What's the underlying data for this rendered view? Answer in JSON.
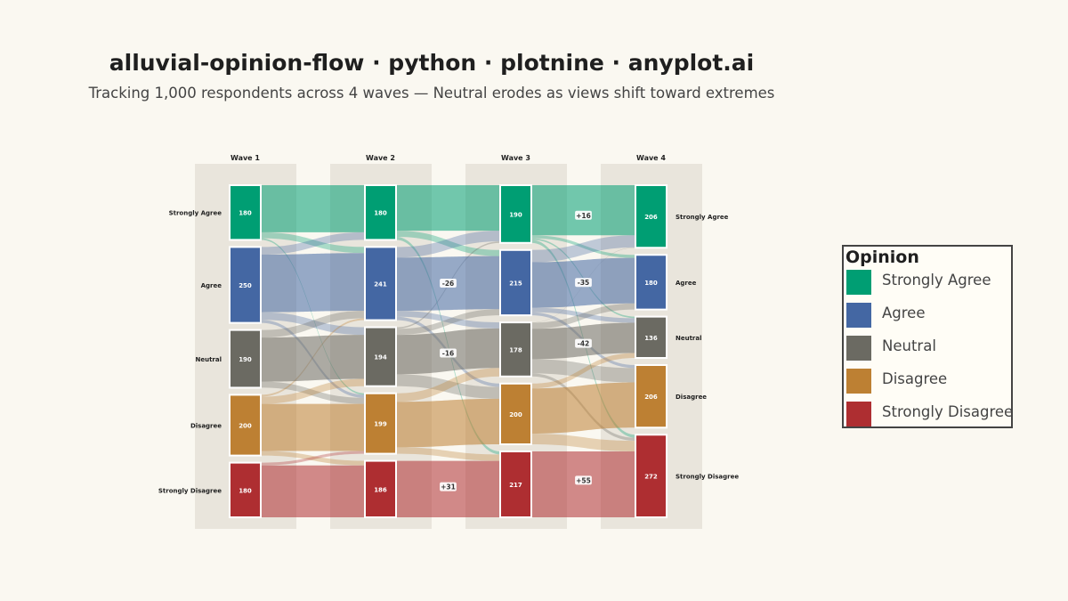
{
  "title": "alluvial-opinion-flow · python · plotnine · anyplot.ai",
  "subtitle": "Tracking 1,000 respondents across 4 waves — Neutral erodes as views shift toward extremes",
  "colors": {
    "Strongly Agree": "#009E73",
    "Agree": "#4467A3",
    "Neutral": "#6B6A62",
    "Disagree": "#BD8033",
    "Strongly Disagree": "#AE2E31"
  },
  "legend": {
    "title": "Opinion",
    "items": [
      "Strongly Agree",
      "Agree",
      "Neutral",
      "Disagree",
      "Strongly Disagree"
    ]
  },
  "chart_data": {
    "type": "alluvial",
    "waves": [
      "Wave 1",
      "Wave 2",
      "Wave 3",
      "Wave 4"
    ],
    "categories": [
      "Strongly Agree",
      "Agree",
      "Neutral",
      "Disagree",
      "Strongly Disagree"
    ],
    "counts": [
      [
        180,
        250,
        190,
        200,
        180
      ],
      [
        180,
        241,
        194,
        199,
        186
      ],
      [
        190,
        215,
        178,
        200,
        217
      ],
      [
        206,
        180,
        136,
        206,
        272
      ]
    ],
    "flows": [
      [
        [
          155,
          20,
          0,
          5,
          0
        ],
        [
          25,
          190,
          25,
          10,
          0
        ],
        [
          0,
          25,
          145,
          20,
          0
        ],
        [
          0,
          6,
          24,
          155,
          15
        ],
        [
          0,
          0,
          0,
          9,
          171
        ]
      ],
      [
        [
          150,
          20,
          0,
          0,
          10
        ],
        [
          35,
          175,
          20,
          11,
          0
        ],
        [
          5,
          20,
          130,
          39,
          0
        ],
        [
          0,
          0,
          28,
          150,
          21
        ],
        [
          0,
          0,
          0,
          0,
          186
        ]
      ],
      [
        [
          165,
          10,
          5,
          0,
          10
        ],
        [
          40,
          150,
          15,
          10,
          0
        ],
        [
          1,
          20,
          100,
          47,
          10
        ],
        [
          0,
          0,
          16,
          149,
          35
        ],
        [
          0,
          0,
          0,
          0,
          217
        ]
      ]
    ],
    "net_change_labels": [
      [
        "",
        "",
        "",
        "",
        ""
      ],
      [
        "",
        "",
        "",
        "",
        ""
      ],
      [
        "",
        "-26",
        "-16",
        "",
        "+31"
      ],
      [
        "+16",
        "-35",
        "-42",
        "",
        "+55"
      ]
    ]
  }
}
